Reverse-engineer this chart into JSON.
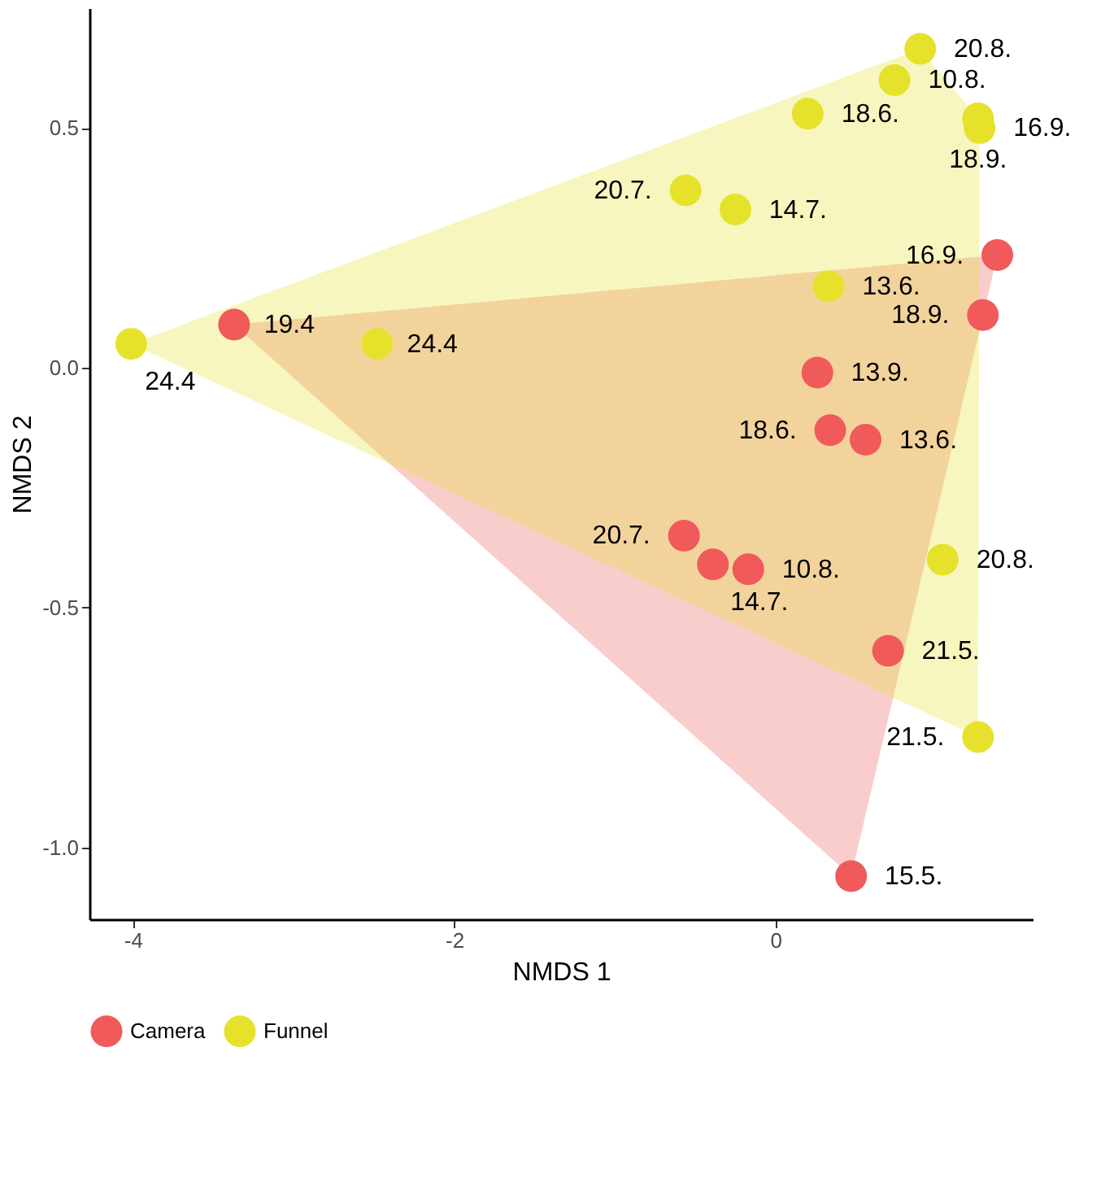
{
  "chart_data": {
    "type": "scatter",
    "xlabel": "NMDS 1",
    "ylabel": "NMDS 2",
    "xlim": [
      -4.27,
      1.6
    ],
    "ylim": [
      -1.15,
      0.75
    ],
    "xticks": [
      -4,
      -2,
      0
    ],
    "yticks": [
      {
        "value": -1.0,
        "label": "-1.0"
      },
      {
        "value": -0.5,
        "label": "-0.5"
      },
      {
        "value": 0.0,
        "label": "0.0"
      },
      {
        "value": 0.5,
        "label": "0.5"
      }
    ],
    "grid": false,
    "legend": "bottom",
    "marker": "circle",
    "series": [
      {
        "name": "Camera",
        "color": "#f05a5a",
        "x": [
          -3.37,
          1.38,
          1.29,
          0.26,
          0.34,
          0.56,
          -0.57,
          -0.39,
          -0.17,
          0.7,
          0.47
        ],
        "values": [
          0.09,
          0.235,
          0.11,
          -0.01,
          -0.13,
          -0.15,
          -0.35,
          -0.41,
          -0.42,
          -0.59,
          -1.06
        ]
      },
      {
        "name": "Funnel",
        "color": "#e6e22c",
        "x": [
          -4.01,
          -2.48,
          -0.56,
          -0.25,
          0.2,
          0.74,
          0.9,
          1.26,
          1.27,
          0.33,
          1.04,
          1.26
        ],
        "values": [
          0.05,
          0.05,
          0.37,
          0.33,
          0.53,
          0.6,
          0.665,
          0.52,
          0.5,
          0.17,
          -0.4,
          -0.77
        ]
      }
    ],
    "annotations": [
      {
        "text": "19.4",
        "x": -3.37,
        "y": 0.09
      },
      {
        "text": "16.9.",
        "x": 1.38,
        "y": 0.235
      },
      {
        "text": "18.9.",
        "x": 1.29,
        "y": 0.11
      },
      {
        "text": "13.9.",
        "x": 0.26,
        "y": -0.01
      },
      {
        "text": "18.6.",
        "x": 0.34,
        "y": -0.13
      },
      {
        "text": "13.6.",
        "x": 0.56,
        "y": -0.15
      },
      {
        "text": "20.7.",
        "x": -0.57,
        "y": -0.35
      },
      {
        "text": "14.7.",
        "x": -0.39,
        "y": -0.41
      },
      {
        "text": "10.8.",
        "x": -0.17,
        "y": -0.42
      },
      {
        "text": "21.5.",
        "x": 0.7,
        "y": -0.59
      },
      {
        "text": "15.5.",
        "x": 0.47,
        "y": -1.06
      },
      {
        "text": "24.4",
        "x": -4.01,
        "y": 0.05
      },
      {
        "text": "24.4",
        "x": -2.48,
        "y": 0.05
      },
      {
        "text": "20.7.",
        "x": -0.56,
        "y": 0.37
      },
      {
        "text": "14.7.",
        "x": -0.25,
        "y": 0.33
      },
      {
        "text": "18.6.",
        "x": 0.2,
        "y": 0.53
      },
      {
        "text": "10.8.",
        "x": 0.74,
        "y": 0.6
      },
      {
        "text": "20.8.",
        "x": 0.9,
        "y": 0.665
      },
      {
        "text": "18.9.",
        "x": 1.26,
        "y": 0.52
      },
      {
        "text": "16.9.",
        "x": 1.27,
        "y": 0.5
      },
      {
        "text": "13.6.",
        "x": 0.33,
        "y": 0.17
      },
      {
        "text": "20.8.",
        "x": 1.04,
        "y": -0.4
      },
      {
        "text": "21.5.",
        "x": 1.26,
        "y": -0.77
      }
    ]
  }
}
